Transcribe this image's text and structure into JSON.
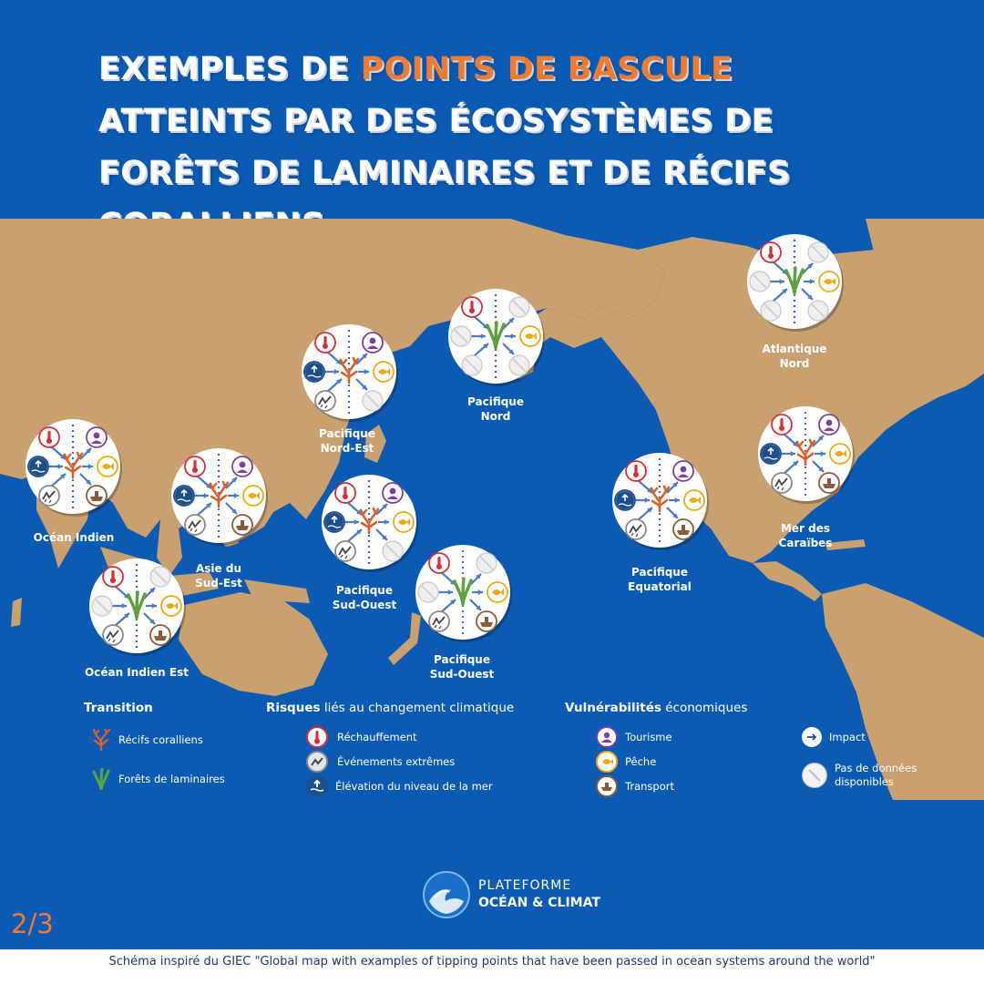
{
  "title": {
    "line1_prefix": "EXEMPLES DE ",
    "line1_highlight": "POINTS DE BASCULE",
    "line2": "ATTEINTS PAR DES ÉCOSYSTÈMES DE",
    "line3": "FORÊTS DE LAMINAIRES ET DE RÉCIFS",
    "line4": "CORALLIENS"
  },
  "colors": {
    "ocean": "#0b5bb5",
    "land": "#c9a06e",
    "accent": "#f07a2e",
    "coral": "#d9612b",
    "kelp": "#5aa23b",
    "warming": "#d62e36",
    "tourism": "#7b3fa0",
    "fishing": "#f0a818",
    "sea_level": "#1d4f8f"
  },
  "regions": [
    {
      "id": "ocean-indien",
      "label": "Océan Indien",
      "transition": "coral",
      "warming": true,
      "extremes": true,
      "sea_level": true,
      "tourism": true,
      "fishing": true,
      "transport": true
    },
    {
      "id": "asie-sud-est",
      "label": "Asie du\nSud-Est",
      "transition": "coral",
      "warming": true,
      "extremes": true,
      "sea_level": true,
      "tourism": true,
      "fishing": true,
      "transport": true
    },
    {
      "id": "ocean-indien-est",
      "label": "Océan Indien Est",
      "transition": "kelp",
      "warming": true,
      "extremes": true,
      "sea_level": false,
      "tourism": false,
      "fishing": true,
      "transport": true
    },
    {
      "id": "pacifique-nord-est",
      "label": "Pacifique\nNord-Est",
      "transition": "coral",
      "warming": true,
      "extremes": true,
      "sea_level": true,
      "tourism": true,
      "fishing": true,
      "transport": false
    },
    {
      "id": "pacifique-sud-ouest-1",
      "label": "Pacifique\nSud-Ouest",
      "transition": "coral",
      "warming": true,
      "extremes": true,
      "sea_level": true,
      "tourism": true,
      "fishing": true,
      "transport": false
    },
    {
      "id": "pacifique-nord",
      "label": "Pacifique\nNord",
      "transition": "kelp",
      "warming": true,
      "extremes": false,
      "sea_level": false,
      "tourism": false,
      "fishing": true,
      "transport": false
    },
    {
      "id": "pacifique-sud-ouest-2",
      "label": "Pacifique\nSud-Ouest",
      "transition": "kelp",
      "warming": true,
      "extremes": true,
      "sea_level": false,
      "tourism": false,
      "fishing": true,
      "transport": true
    },
    {
      "id": "pacifique-equatorial",
      "label": "Pacifique\nEquatorial",
      "transition": "coral",
      "warming": true,
      "extremes": true,
      "sea_level": true,
      "tourism": true,
      "fishing": true,
      "transport": true
    },
    {
      "id": "atlantique-nord",
      "label": "Atlantique\nNord",
      "transition": "kelp",
      "warming": true,
      "extremes": false,
      "sea_level": false,
      "tourism": false,
      "fishing": true,
      "transport": false
    },
    {
      "id": "mer-des-caraibes",
      "label": "Mer des\nCaraïbes",
      "transition": "coral",
      "warming": true,
      "extremes": true,
      "sea_level": true,
      "tourism": true,
      "fishing": true,
      "transport": true
    }
  ],
  "legend": {
    "transition": {
      "title": "Transition",
      "items": [
        {
          "icon": "coral-icon",
          "label": "Récifs coralliens"
        },
        {
          "icon": "kelp-icon",
          "label": "Forêts de laminaires"
        }
      ]
    },
    "risks": {
      "title_bold": "Risques",
      "title_rest": " liés au changement climatique",
      "items": [
        {
          "icon": "thermometer-icon",
          "label": "Réchauffement"
        },
        {
          "icon": "storm-icon",
          "label": "Événements extrêmes"
        },
        {
          "icon": "sea-level-icon",
          "label": "Élévation du niveau de la mer"
        }
      ]
    },
    "vulnerabilities": {
      "title_bold": "Vulnérabilités",
      "title_rest": " économiques",
      "items": [
        {
          "icon": "tourism-icon",
          "label": "Tourisme"
        },
        {
          "icon": "fish-icon",
          "label": "Pêche"
        },
        {
          "icon": "ship-icon",
          "label": "Transport"
        }
      ]
    },
    "other": {
      "items": [
        {
          "icon": "arrow-icon",
          "label": "Impact"
        },
        {
          "icon": "no-data-icon",
          "label": "Pas de données\ndisponibles"
        }
      ]
    }
  },
  "logo": {
    "line1": "PLATEFORME",
    "line2": "OCÉAN & CLIMAT"
  },
  "page_number": "2/3",
  "footer": "Schéma inspiré du GIEC \"Global map with examples of tipping points that have been passed in ocean systems around the world\""
}
